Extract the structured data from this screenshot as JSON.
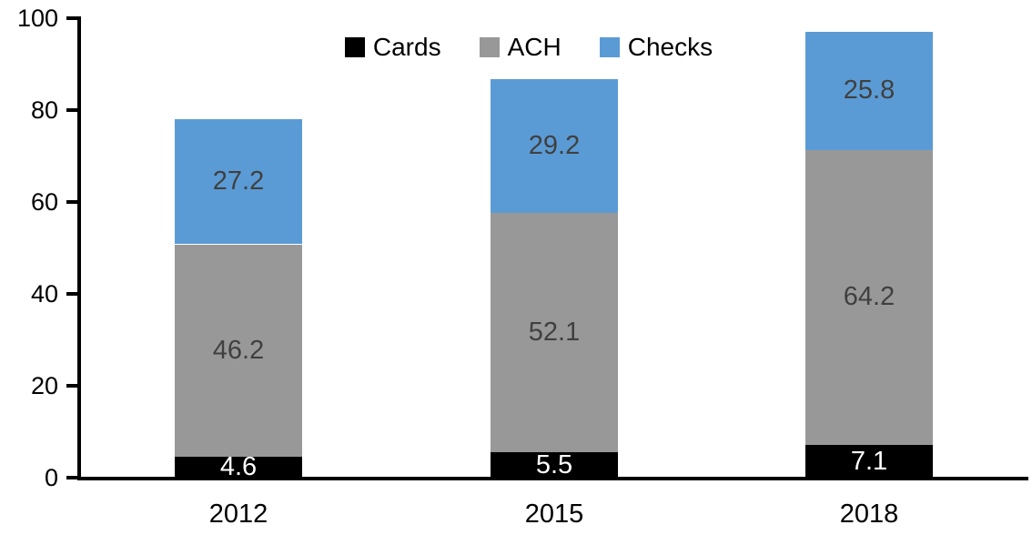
{
  "chart_data": {
    "type": "bar",
    "stacked": true,
    "title": "",
    "categories": [
      "2012",
      "2015",
      "2018"
    ],
    "series": [
      {
        "name": "Cards",
        "color": "#000000",
        "label_color": "#FFFFFF",
        "values": [
          4.6,
          5.5,
          7.1
        ]
      },
      {
        "name": "ACH",
        "color": "#989898",
        "label_color": "#404040",
        "values": [
          46.2,
          52.1,
          64.2
        ]
      },
      {
        "name": "Checks",
        "color": "#5B9BD5",
        "label_color": "#404040",
        "values": [
          27.2,
          29.2,
          25.8
        ]
      }
    ],
    "totals": [
      78.0,
      86.8,
      97.1
    ],
    "ylim": [
      0,
      100
    ],
    "yticks": [
      0,
      20,
      40,
      60,
      80,
      100
    ],
    "grid": false,
    "legend_position": "top-center",
    "axis_color": "#000000",
    "background_color": "#FFFFFF"
  }
}
